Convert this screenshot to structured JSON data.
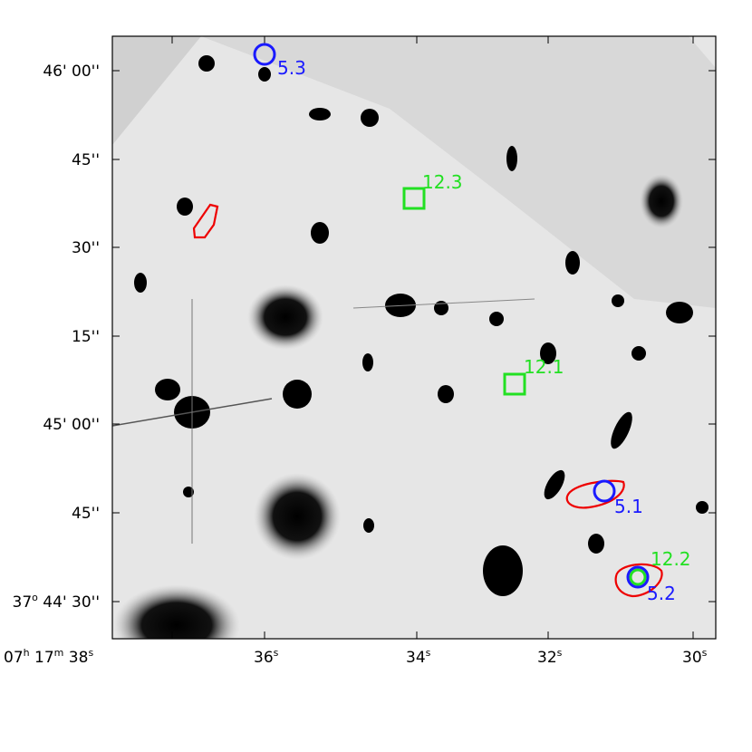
{
  "x_axis": {
    "ticks": [
      [
        "07",
        "h",
        " 17",
        "m",
        " 38",
        "s"
      ],
      [
        "36",
        "s"
      ],
      [
        "34",
        "s"
      ],
      [
        "32",
        "s"
      ],
      [
        "30",
        "s"
      ]
    ]
  },
  "y_axis": {
    "ticks": [
      [
        "46' 00''"
      ],
      [
        "45''"
      ],
      [
        "30''"
      ],
      [
        "15''"
      ],
      [
        "45' 00''"
      ],
      [
        "45''"
      ],
      [
        "37",
        "o",
        " 44' 30''"
      ]
    ]
  },
  "markers": [
    {
      "label": "5.3",
      "shape": "circle",
      "color": "#1a1aff"
    },
    {
      "label": "12.3",
      "shape": "square",
      "color": "#22e022"
    },
    {
      "label": "12.1",
      "shape": "square",
      "color": "#22e022"
    },
    {
      "label": "5.1",
      "shape": "circle",
      "color": "#1a1aff"
    },
    {
      "label": "12.2",
      "shape": "circle",
      "color": "#22e022"
    },
    {
      "label": "5.2",
      "shape": "circle",
      "color": "#1a1aff"
    }
  ]
}
